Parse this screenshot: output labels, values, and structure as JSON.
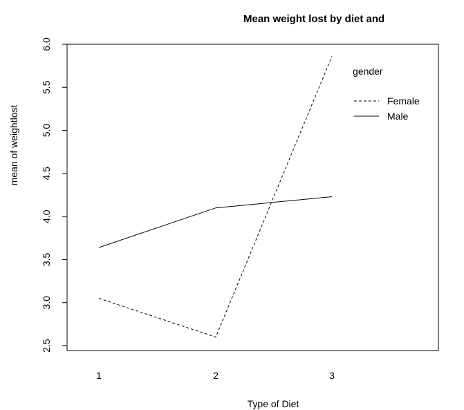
{
  "chart_data": {
    "type": "line",
    "title": "Mean weight lost by diet and",
    "xlabel": "Type of Diet",
    "ylabel": "mean of weightlost",
    "categories": [
      "1",
      "2",
      "3"
    ],
    "x_ticks": [
      "1",
      "2",
      "3"
    ],
    "y_ticks": [
      "2.5",
      "3.0",
      "3.5",
      "4.0",
      "4.5",
      "5.0",
      "5.5",
      "6.0"
    ],
    "ylim": [
      2.5,
      6.0
    ],
    "grid": false,
    "legend": {
      "title": "gender",
      "position": "top-right"
    },
    "series": [
      {
        "name": "Female",
        "values": [
          3.05,
          2.6,
          5.86
        ],
        "line_style": "dashed"
      },
      {
        "name": "Male",
        "values": [
          3.64,
          4.1,
          4.23
        ],
        "line_style": "solid"
      }
    ]
  }
}
